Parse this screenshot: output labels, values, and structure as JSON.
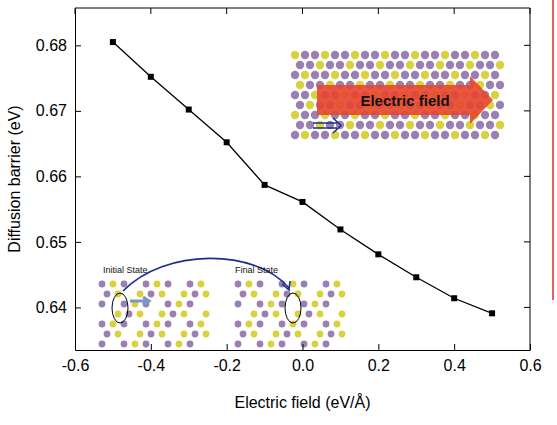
{
  "chart_data": {
    "type": "line",
    "x": [
      -0.5,
      -0.4,
      -0.3,
      -0.2,
      -0.1,
      0.0,
      0.1,
      0.2,
      0.3,
      0.4,
      0.5
    ],
    "values": [
      0.6805,
      0.6752,
      0.6702,
      0.6652,
      0.6587,
      0.6561,
      0.6519,
      0.6481,
      0.6446,
      0.6414,
      0.6391
    ],
    "color": "#000000",
    "marker": "square",
    "line_style": "solid",
    "x_label": "Electric field (eV/Å)",
    "y_label": "Diffusion barrier (eV)",
    "xlim": [
      -0.6,
      0.6
    ],
    "xticks": [
      -0.6,
      -0.4,
      -0.2,
      {
        "value": 0,
        "label": "0.0"
      },
      0.2,
      0.4,
      0.6
    ],
    "ylim": [
      0.6335,
      0.6857
    ],
    "yticks": [
      0.64,
      0.65,
      0.66,
      0.67,
      0.68
    ],
    "annotations": [
      {
        "text": "Electric field"
      },
      {
        "text": "Initial State"
      },
      {
        "text": "Final State"
      }
    ]
  }
}
